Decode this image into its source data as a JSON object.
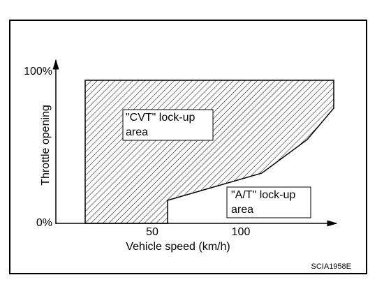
{
  "axes": {
    "y_label": "Throttle opening",
    "x_label": "Vehicle speed (km/h)",
    "y_ticks": [
      "100%",
      "0%"
    ],
    "x_ticks": [
      "50",
      "100"
    ]
  },
  "regions": [
    {
      "label_lines": [
        "\"CVT\" lock-up",
        "area"
      ]
    },
    {
      "label_lines": [
        "\"A/T\" lock-up",
        "area"
      ]
    }
  ],
  "figure_code": "SCIA1958E"
}
